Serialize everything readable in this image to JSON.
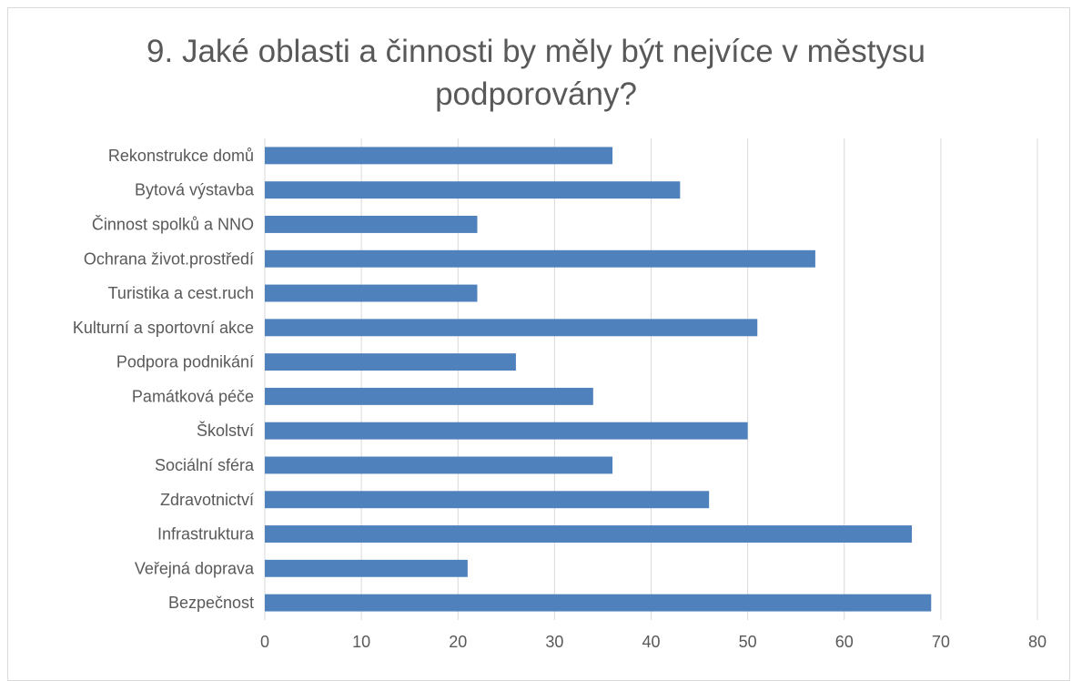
{
  "chart_data": {
    "type": "bar",
    "orientation": "horizontal",
    "title": "9. Jaké oblasti a činnosti by měly být nejvíce v městysu podporovány?",
    "title_lines": [
      "9. Jaké oblasti a činnosti by měly být nejvíce v městysu",
      "podporovány?"
    ],
    "xlabel": "",
    "ylabel": "",
    "categories": [
      "Rekonstrukce domů",
      "Bytová výstavba",
      "Činnost spolků a NNO",
      "Ochrana život.prostředí",
      "Turistika a cest.ruch",
      "Kulturní a sportovní akce",
      "Podpora podnikání",
      "Památková péče",
      "Školství",
      "Sociální sféra",
      "Zdravotnictví",
      "Infrastruktura",
      "Veřejná doprava",
      "Bezpečnost"
    ],
    "values": [
      36,
      43,
      22,
      57,
      22,
      51,
      26,
      34,
      50,
      36,
      46,
      67,
      21,
      69
    ],
    "xlim": [
      0,
      80
    ],
    "xticks": [
      "0",
      "10",
      "20",
      "30",
      "40",
      "50",
      "60",
      "70",
      "80"
    ],
    "grid": "vertical",
    "legend": "none",
    "colors": {
      "bar": "#4f81bd",
      "grid": "#d9d9d9",
      "text": "#595959"
    }
  }
}
